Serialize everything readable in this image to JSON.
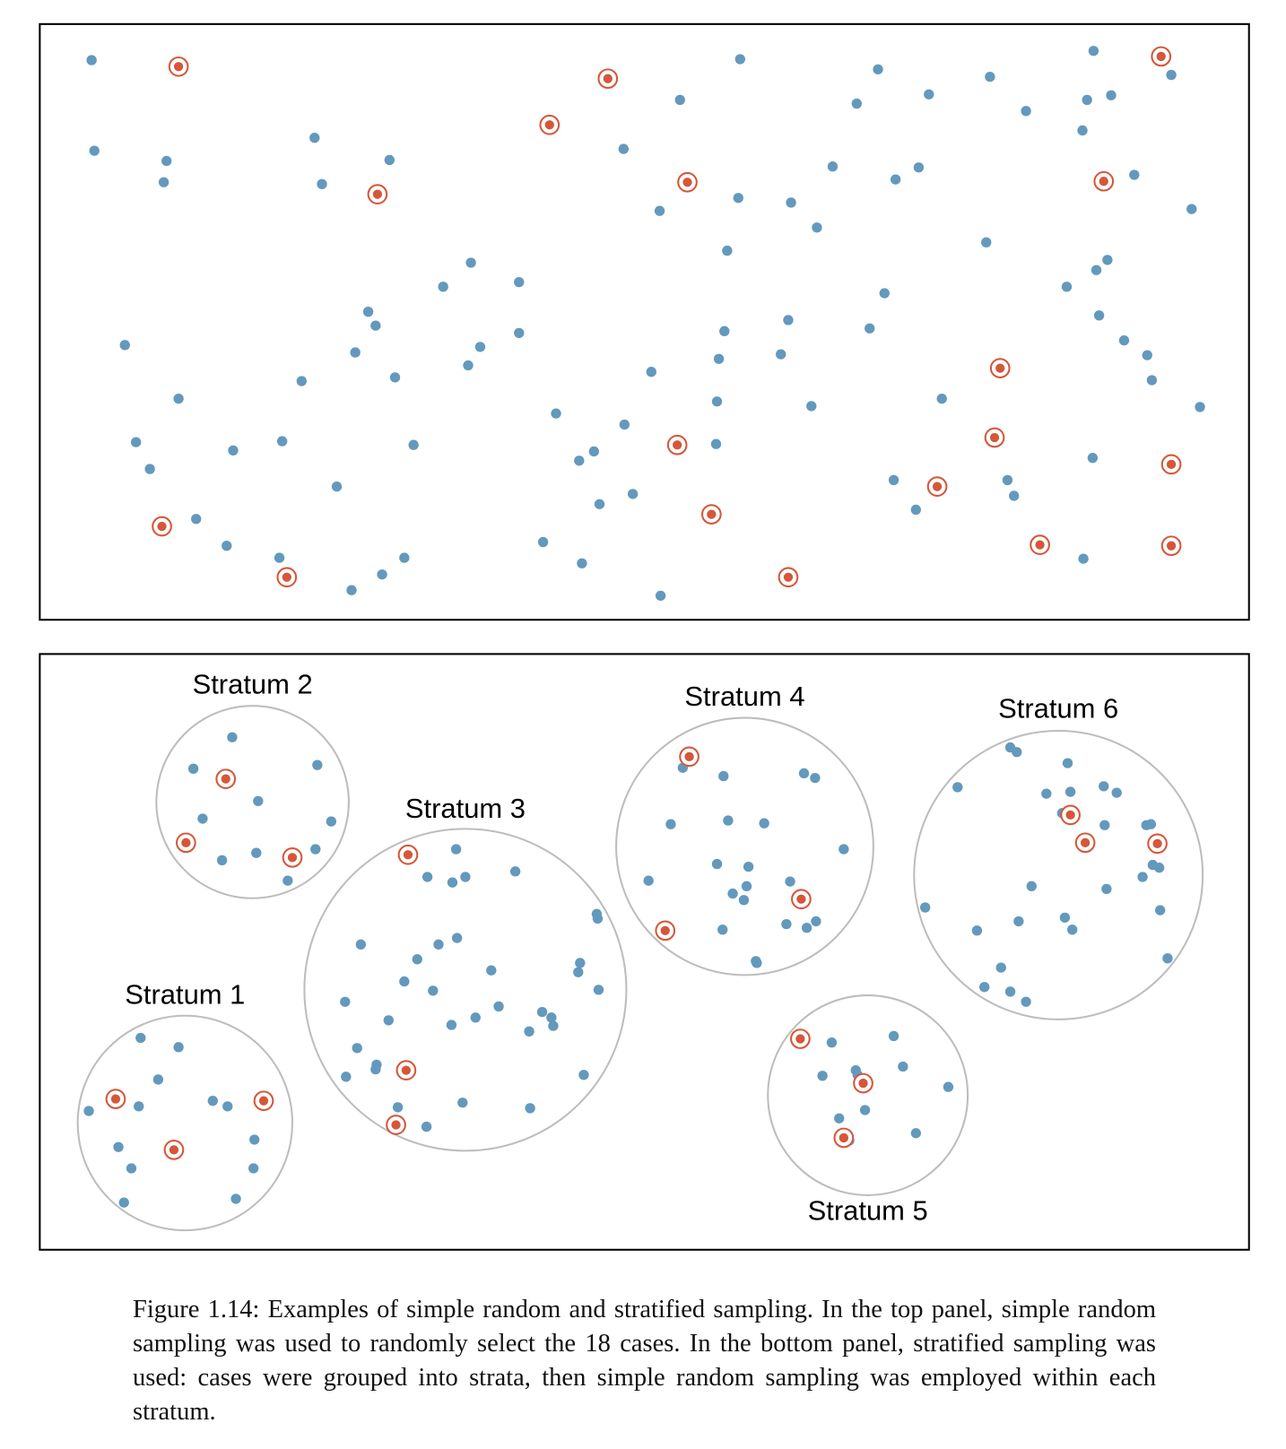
{
  "strata": [
    {
      "label": "Stratum 1"
    },
    {
      "label": "Stratum 2"
    },
    {
      "label": "Stratum 3"
    },
    {
      "label": "Stratum 4"
    },
    {
      "label": "Stratum 5"
    },
    {
      "label": "Stratum 6"
    }
  ],
  "caption": "Figure 1.14: Examples of simple random and stratified sampling. In the top panel, simple random sampling was used to randomly select the 18 cases. In the bottom panel, stratified sampling was used: cases were grouped into strata, then simple random sampling was employed within each stratum."
}
